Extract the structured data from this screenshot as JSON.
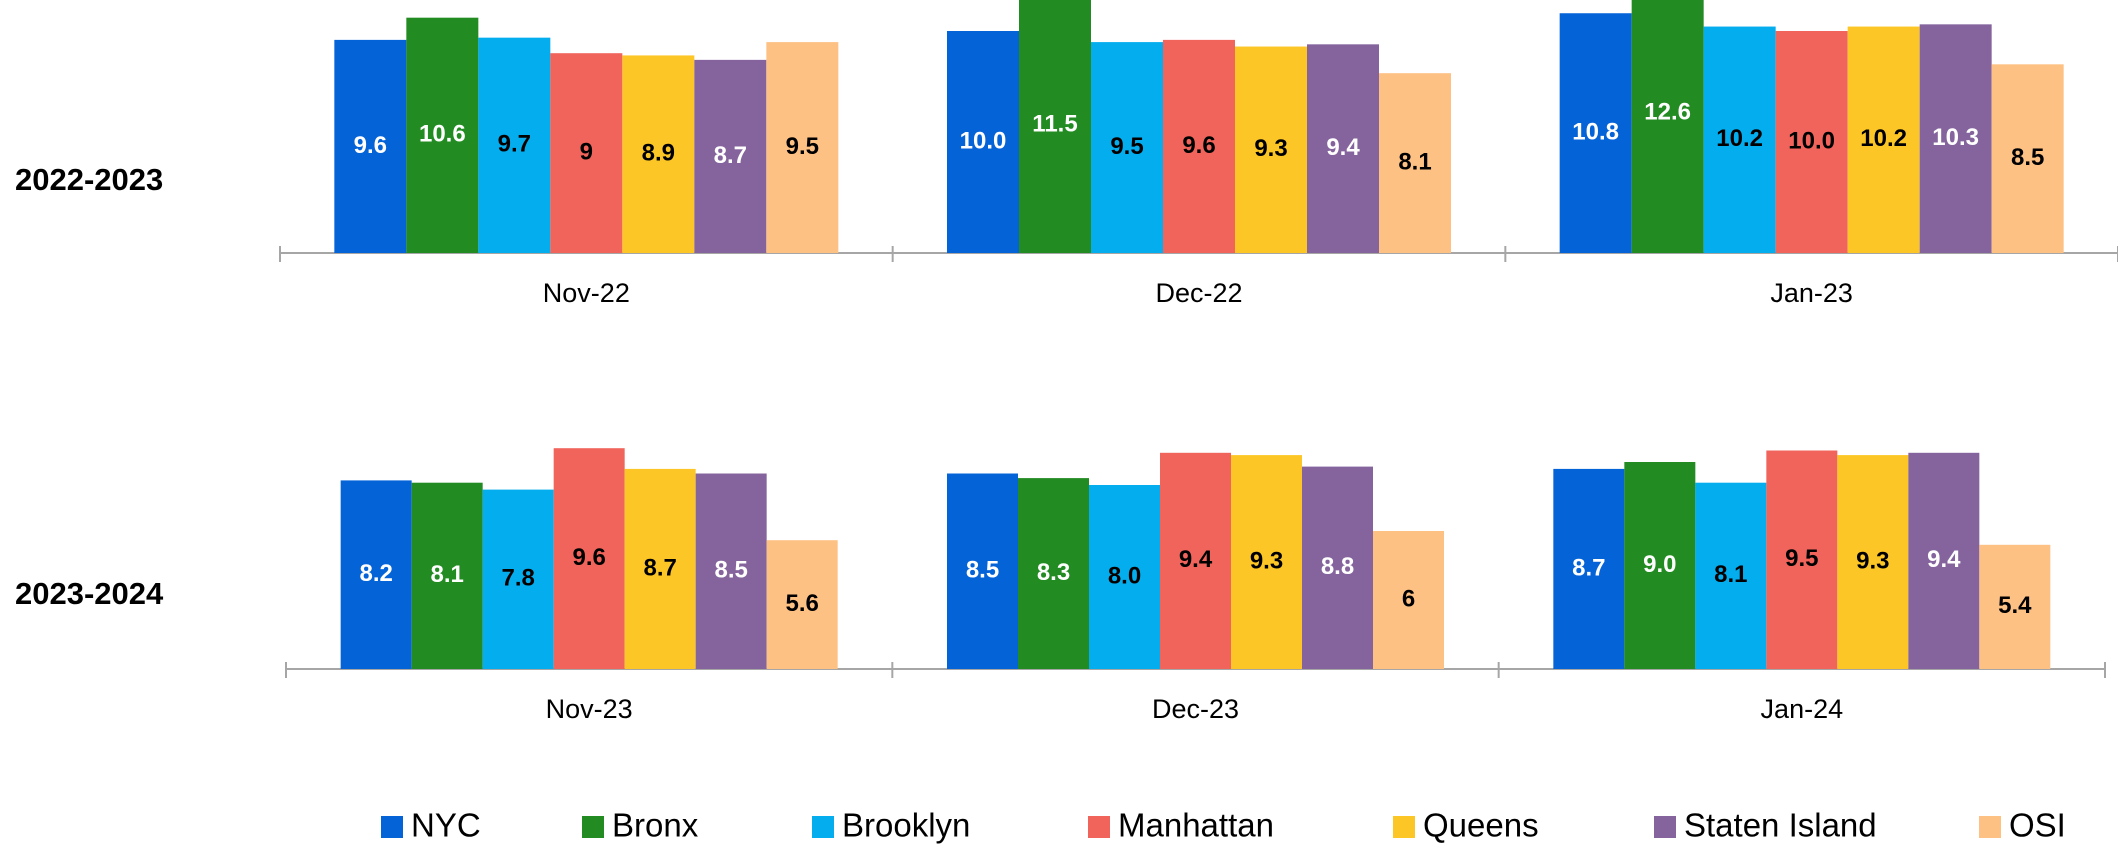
{
  "chart_data": [
    {
      "type": "bar",
      "title": "2022-2023",
      "categories": [
        "Nov-22",
        "Dec-22",
        "Jan-23"
      ],
      "series": [
        {
          "name": "NYC",
          "color": "#0563d8",
          "values": [
            9.6,
            10.0,
            10.8
          ],
          "value_labels": [
            "9.6",
            "10.0",
            "10.8"
          ]
        },
        {
          "name": "Bronx",
          "color": "#228b22",
          "values": [
            10.6,
            11.5,
            12.6
          ],
          "value_labels": [
            "10.6",
            "11.5",
            "12.6"
          ]
        },
        {
          "name": "Brooklyn",
          "color": "#03adee",
          "values": [
            9.7,
            9.5,
            10.2
          ],
          "value_labels": [
            "9.7",
            "9.5",
            "10.2"
          ]
        },
        {
          "name": "Manhattan",
          "color": "#f0645b",
          "values": [
            9,
            9.6,
            10.0
          ],
          "value_labels": [
            "9",
            "9.6",
            "10.0"
          ]
        },
        {
          "name": "Queens",
          "color": "#fcc626",
          "values": [
            8.9,
            9.3,
            10.2
          ],
          "value_labels": [
            "8.9",
            "9.3",
            "10.2"
          ]
        },
        {
          "name": "Staten Island",
          "color": "#85649e",
          "values": [
            8.7,
            9.4,
            10.3
          ],
          "value_labels": [
            "8.7",
            "9.4",
            "10.3"
          ]
        },
        {
          "name": "OSI",
          "color": "#fec184",
          "values": [
            9.5,
            8.1,
            8.5
          ],
          "value_labels": [
            "9.5",
            "8.1",
            "8.5"
          ]
        }
      ]
    },
    {
      "type": "bar",
      "title": "2023-2024",
      "categories": [
        "Nov-23",
        "Dec-23",
        "Jan-24"
      ],
      "series": [
        {
          "name": "NYC",
          "color": "#0563d8",
          "values": [
            8.2,
            8.5,
            8.7
          ],
          "value_labels": [
            "8.2",
            "8.5",
            "8.7"
          ]
        },
        {
          "name": "Bronx",
          "color": "#228b22",
          "values": [
            8.1,
            8.3,
            9.0
          ],
          "value_labels": [
            "8.1",
            "8.3",
            "9.0"
          ]
        },
        {
          "name": "Brooklyn",
          "color": "#03adee",
          "values": [
            7.8,
            8.0,
            8.1
          ],
          "value_labels": [
            "7.8",
            "8.0",
            "8.1"
          ]
        },
        {
          "name": "Manhattan",
          "color": "#f0645b",
          "values": [
            9.6,
            9.4,
            9.5
          ],
          "value_labels": [
            "9.6",
            "9.4",
            "9.5"
          ]
        },
        {
          "name": "Queens",
          "color": "#fcc626",
          "values": [
            8.7,
            9.3,
            9.3
          ],
          "value_labels": [
            "8.7",
            "9.3",
            "9.3"
          ]
        },
        {
          "name": "Staten Island",
          "color": "#85649e",
          "values": [
            8.5,
            8.8,
            9.4
          ],
          "value_labels": [
            "8.5",
            "8.8",
            "9.4"
          ]
        },
        {
          "name": "OSI",
          "color": "#fec184",
          "values": [
            5.6,
            6,
            5.4
          ],
          "value_labels": [
            "5.6",
            "6",
            "5.4"
          ]
        }
      ]
    }
  ]
}
